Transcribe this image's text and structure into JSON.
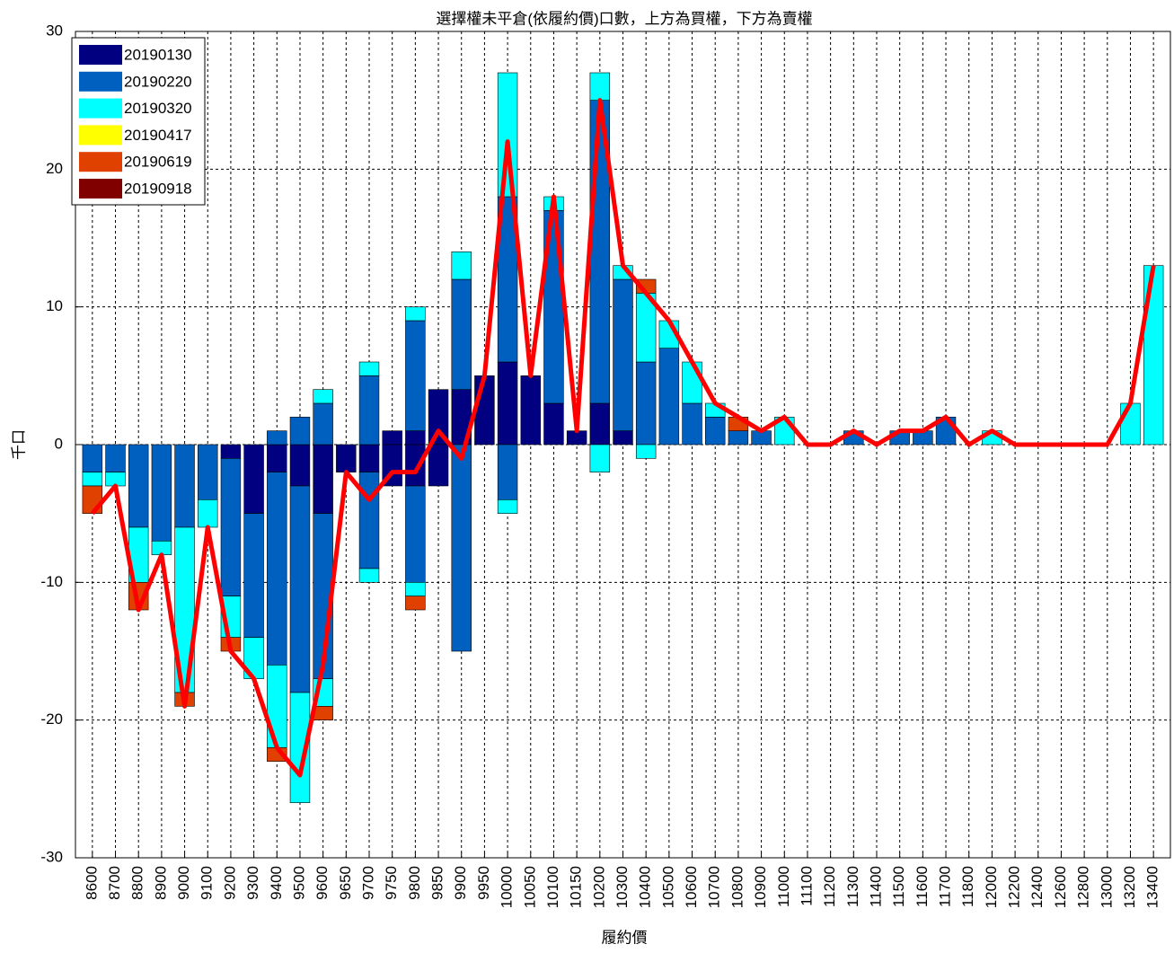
{
  "chart_data": {
    "type": "stacked-bar-line",
    "title": "選擇權未平倉(依履約價)口數，上方為買權，下方為賣權",
    "ylabel": "千口",
    "xlabel": "履約價",
    "categories": [
      "8600",
      "8700",
      "8800",
      "8900",
      "9000",
      "9100",
      "9200",
      "9300",
      "9400",
      "9500",
      "9600",
      "9650",
      "9700",
      "9750",
      "9800",
      "9850",
      "9900",
      "9950",
      "10000",
      "10050",
      "10100",
      "10150",
      "10200",
      "10300",
      "10400",
      "10500",
      "10600",
      "10700",
      "10800",
      "10900",
      "11000",
      "11100",
      "11200",
      "11300",
      "11400",
      "11500",
      "11600",
      "11700",
      "11800",
      "12000",
      "12200",
      "12400",
      "12600",
      "12800",
      "13000",
      "13200",
      "13400"
    ],
    "ylim": [
      -30,
      30
    ],
    "yticks": [
      -30,
      -20,
      -10,
      0,
      10,
      20,
      30
    ],
    "grid": true,
    "legend": "top-left",
    "series": [
      {
        "name": "20190130",
        "color": "#000080",
        "calls": [
          0,
          0,
          0,
          0,
          0,
          0,
          0,
          0,
          0,
          0,
          0,
          0,
          0,
          1,
          1,
          4,
          4,
          5,
          6,
          5,
          3,
          1,
          3,
          1,
          0,
          0,
          0,
          0,
          0,
          0,
          0,
          0,
          0,
          0,
          0,
          0,
          0,
          0,
          0,
          0,
          0,
          0,
          0,
          0,
          0,
          0,
          0
        ],
        "puts": [
          0,
          0,
          0,
          0,
          0,
          0,
          -1,
          -5,
          -2,
          -3,
          -5,
          -2,
          -2,
          -3,
          -3,
          -3,
          0,
          0,
          0,
          0,
          0,
          0,
          0,
          0,
          0,
          0,
          0,
          0,
          0,
          0,
          0,
          0,
          0,
          0,
          0,
          0,
          0,
          0,
          0,
          0,
          0,
          0,
          0,
          0,
          0,
          0,
          0
        ]
      },
      {
        "name": "20190220",
        "color": "#0060c0",
        "calls": [
          0,
          0,
          0,
          0,
          0,
          0,
          0,
          0,
          1,
          2,
          3,
          0,
          5,
          0,
          8,
          0,
          8,
          0,
          12,
          0,
          14,
          0,
          22,
          11,
          6,
          7,
          3,
          2,
          1,
          1,
          0,
          0,
          0,
          1,
          0,
          1,
          1,
          2,
          0,
          0,
          0,
          0,
          0,
          0,
          0,
          0,
          0
        ],
        "puts": [
          -2,
          -2,
          -6,
          -7,
          -6,
          -4,
          -10,
          -9,
          -14,
          -15,
          -12,
          0,
          -7,
          0,
          -7,
          0,
          -15,
          0,
          -4,
          0,
          0,
          0,
          0,
          0,
          0,
          0,
          0,
          0,
          0,
          0,
          0,
          0,
          0,
          0,
          0,
          0,
          0,
          0,
          0,
          0,
          0,
          0,
          0,
          0,
          0,
          0,
          0
        ]
      },
      {
        "name": "20190320",
        "color": "#00ffff",
        "calls": [
          0,
          0,
          0,
          0,
          0,
          0,
          0,
          0,
          0,
          0,
          1,
          0,
          1,
          0,
          1,
          0,
          2,
          0,
          9,
          0,
          1,
          0,
          2,
          1,
          5,
          2,
          3,
          1,
          0,
          0,
          2,
          0,
          0,
          0,
          0,
          0,
          0,
          0,
          0,
          1,
          0,
          0,
          0,
          0,
          0,
          3,
          13
        ],
        "puts": [
          -1,
          -1,
          -4,
          -1,
          -12,
          -2,
          -3,
          -3,
          -6,
          -8,
          -2,
          0,
          -1,
          0,
          -1,
          0,
          0,
          0,
          -1,
          0,
          0,
          0,
          -2,
          0,
          -1,
          0,
          0,
          0,
          0,
          0,
          0,
          0,
          0,
          0,
          0,
          0,
          0,
          0,
          0,
          0,
          0,
          0,
          0,
          0,
          0,
          0,
          0
        ]
      },
      {
        "name": "20190417",
        "color": "#ffff00",
        "calls": [
          0,
          0,
          0,
          0,
          0,
          0,
          0,
          0,
          0,
          0,
          0,
          0,
          0,
          0,
          0,
          0,
          0,
          0,
          0,
          0,
          0,
          0,
          0,
          0,
          0,
          0,
          0,
          0,
          0,
          0,
          0,
          0,
          0,
          0,
          0,
          0,
          0,
          0,
          0,
          0,
          0,
          0,
          0,
          0,
          0,
          0,
          0
        ],
        "puts": [
          0,
          0,
          0,
          0,
          0,
          0,
          0,
          0,
          0,
          0,
          0,
          0,
          0,
          0,
          0,
          0,
          0,
          0,
          0,
          0,
          0,
          0,
          0,
          0,
          0,
          0,
          0,
          0,
          0,
          0,
          0,
          0,
          0,
          0,
          0,
          0,
          0,
          0,
          0,
          0,
          0,
          0,
          0,
          0,
          0,
          0,
          0
        ]
      },
      {
        "name": "20190619",
        "color": "#e04000",
        "calls": [
          0,
          0,
          0,
          0,
          0,
          0,
          0,
          0,
          0,
          0,
          0,
          0,
          0,
          0,
          0,
          0,
          0,
          0,
          0,
          0,
          0,
          0,
          0,
          0,
          1,
          0,
          0,
          0,
          1,
          0,
          0,
          0,
          0,
          0,
          0,
          0,
          0,
          0,
          0,
          0,
          0,
          0,
          0,
          0,
          0,
          0,
          0
        ],
        "puts": [
          -2,
          0,
          -2,
          0,
          -1,
          0,
          -1,
          0,
          -1,
          0,
          -1,
          0,
          0,
          0,
          -1,
          0,
          0,
          0,
          0,
          0,
          0,
          0,
          0,
          0,
          0,
          0,
          0,
          0,
          0,
          0,
          0,
          0,
          0,
          0,
          0,
          0,
          0,
          0,
          0,
          0,
          0,
          0,
          0,
          0,
          0,
          0,
          0
        ]
      },
      {
        "name": "20190918",
        "color": "#800000",
        "calls": [
          0,
          0,
          0,
          0,
          0,
          0,
          0,
          0,
          0,
          0,
          0,
          0,
          0,
          0,
          0,
          0,
          0,
          0,
          0,
          0,
          0,
          0,
          0,
          0,
          0,
          0,
          0,
          0,
          0,
          0,
          0,
          0,
          0,
          0,
          0,
          0,
          0,
          0,
          0,
          0,
          0,
          0,
          0,
          0,
          0,
          0,
          0
        ],
        "puts": [
          0,
          0,
          0,
          0,
          0,
          0,
          0,
          0,
          0,
          0,
          0,
          0,
          0,
          0,
          0,
          0,
          0,
          0,
          0,
          0,
          0,
          0,
          0,
          0,
          0,
          0,
          0,
          0,
          0,
          0,
          0,
          0,
          0,
          0,
          0,
          0,
          0,
          0,
          0,
          0,
          0,
          0,
          0,
          0,
          0,
          0,
          0
        ]
      }
    ],
    "line": {
      "color": "#ff0000",
      "values": [
        -5,
        -3,
        -12,
        -8,
        -19,
        -6,
        -15,
        -17,
        -22,
        -24,
        -16,
        -2,
        -4,
        -2,
        -2,
        1,
        -1,
        5,
        22,
        5,
        18,
        1,
        25,
        13,
        11,
        9,
        6,
        3,
        2,
        1,
        2,
        0,
        0,
        1,
        0,
        1,
        1,
        2,
        0,
        1,
        0,
        0,
        0,
        0,
        0,
        3,
        13
      ]
    }
  }
}
